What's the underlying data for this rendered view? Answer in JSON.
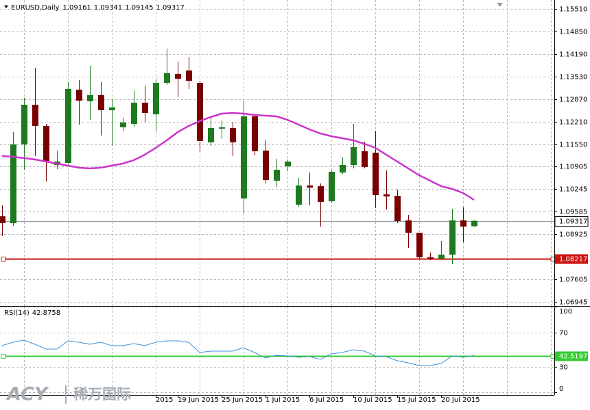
{
  "chart_data": {
    "type": "candlestick",
    "symbol": "EURUSD,Daily",
    "categories": [
      null,
      null,
      null,
      null,
      null,
      null,
      null,
      null,
      null,
      null,
      null,
      null,
      null,
      null,
      "2015",
      null,
      "19 Jun 2015",
      null,
      null,
      null,
      "25 Jun 2015",
      null,
      null,
      null,
      "1 Jul 2015",
      null,
      null,
      null,
      "6 Jul 2015",
      null,
      null,
      null,
      "10 Jul 2015",
      null,
      null,
      null,
      "15 Jul 2015",
      null,
      null,
      null,
      "20 Jul 2015",
      null,
      null,
      null
    ],
    "open": [
      1.0945,
      1.0925,
      1.1155,
      1.1271,
      1.1209,
      1.1095,
      1.1101,
      1.1315,
      1.1281,
      1.1299,
      1.1255,
      1.1205,
      1.1215,
      1.1277,
      1.1243,
      1.1335,
      1.1361,
      1.1371,
      1.1335,
      1.1161,
      1.1201,
      1.1203,
      1.0997,
      1.1237,
      1.1137,
      1.1049,
      1.1091,
      1.0979,
      1.1035,
      1.1033,
      1.0989,
      1.1073,
      1.1095,
      1.1135,
      1.1131,
      1.1009,
      1.1005,
      1.0933,
      1.0897,
      1.0825,
      1.0821,
      1.0833,
      1.0933,
      1.09161
    ],
    "high": [
      1.0977,
      1.1191,
      1.1291,
      1.1379,
      1.1215,
      1.1137,
      1.1337,
      1.1343,
      1.1385,
      1.1337,
      1.1287,
      1.1233,
      1.1313,
      1.1327,
      1.1345,
      1.1435,
      1.1397,
      1.1411,
      1.1341,
      1.1233,
      1.1225,
      1.1221,
      1.1281,
      1.1243,
      1.1167,
      1.1113,
      1.1111,
      1.1057,
      1.1073,
      1.1041,
      1.1081,
      1.1117,
      1.1215,
      1.1163,
      1.1195,
      1.1079,
      1.1023,
      1.0949,
      1.0897,
      1.0839,
      1.0873,
      1.0967,
      1.0971,
      1.09341
    ],
    "low": [
      1.0887,
      1.0917,
      1.1081,
      1.1121,
      1.1047,
      1.1083,
      1.1097,
      1.1213,
      1.1227,
      1.1181,
      1.1151,
      1.1195,
      1.1207,
      1.1221,
      1.1193,
      1.1329,
      1.1293,
      1.1317,
      1.1133,
      1.1151,
      1.1171,
      1.1121,
      1.0953,
      1.1123,
      1.1041,
      1.1031,
      1.1077,
      1.0973,
      1.0977,
      1.0915,
      1.0985,
      1.1069,
      1.1085,
      1.1085,
      1.0969,
      1.0965,
      1.0925,
      1.0853,
      1.0821,
      1.0817,
      1.0817,
      1.0805,
      1.0869,
      1.09145
    ],
    "close": [
      1.0925,
      1.1155,
      1.1271,
      1.1209,
      1.1107,
      1.1105,
      1.1317,
      1.1283,
      1.1299,
      1.1255,
      1.1263,
      1.1219,
      1.1277,
      1.1247,
      1.1335,
      1.1363,
      1.1347,
      1.1341,
      1.1165,
      1.1203,
      1.1205,
      1.1161,
      1.1237,
      1.1135,
      1.1051,
      1.1081,
      1.1105,
      1.1035,
      1.1029,
      1.0987,
      1.1075,
      1.1095,
      1.1147,
      1.1089,
      1.1007,
      1.1003,
      1.0931,
      1.0897,
      1.0825,
      1.0821,
      1.0833,
      1.0933,
      1.0915,
      1.09317
    ],
    "bull_color": "#1e7a1e",
    "bear_color": "#7a0000",
    "ma": {
      "color": "#cc33cc",
      "values": [
        1.1121,
        1.1119,
        1.1115,
        1.1111,
        1.1105,
        1.1099,
        1.1093,
        1.1087,
        1.1085,
        1.1087,
        1.1093,
        1.1099,
        1.1109,
        1.1125,
        1.1145,
        1.1167,
        1.1191,
        1.1209,
        1.1223,
        1.1235,
        1.1245,
        1.1247,
        1.1245,
        1.1241,
        1.1239,
        1.1237,
        1.1227,
        1.1213,
        1.1199,
        1.1187,
        1.1179,
        1.1173,
        1.1167,
        1.1157,
        1.1145,
        1.1125,
        1.1105,
        1.1085,
        1.1065,
        1.1049,
        1.1033,
        1.1025,
        1.1013,
        1.0993
      ]
    },
    "ylim": [
      1.0683,
      1.1577
    ],
    "yticks": [
      {
        "value": 1.1551,
        "label": "1.15510"
      },
      {
        "value": 1.1485,
        "label": "1.14850"
      },
      {
        "value": 1.1419,
        "label": "1.14190"
      },
      {
        "value": 1.1353,
        "label": "1.13530"
      },
      {
        "value": 1.1287,
        "label": "1.12870"
      },
      {
        "value": 1.1221,
        "label": "1.12210"
      },
      {
        "value": 1.1155,
        "label": "1.11550"
      },
      1.10905,
      1.10245,
      1.09585,
      1.08925,
      1.07605,
      1.06945
    ],
    "grid": true,
    "hline": {
      "value": 1.08217,
      "color": "#cc1111"
    },
    "rsi": {
      "title": "RSI(14)",
      "color": "#3d8fd6",
      "values": [
        54.4,
        58.4,
        60.8,
        56,
        50.4,
        50.4,
        60,
        58.4,
        56,
        58.4,
        54.4,
        54.4,
        56.8,
        54.4,
        58.4,
        60,
        60,
        58.4,
        46.4,
        48,
        48,
        48,
        52,
        46.4,
        40,
        43.2,
        42.4,
        40.8,
        41.6,
        38.4,
        44.8,
        46.4,
        49.6,
        48,
        42.4,
        41.6,
        36.8,
        34.4,
        31.2,
        31.2,
        33.6,
        42.4,
        40.8,
        42.8758
      ],
      "ylim": [
        0,
        100
      ],
      "yticks": [
        100,
        70,
        30,
        0
      ],
      "level": {
        "value": 42.5197,
        "color": "#33cc33"
      }
    },
    "watermark": {
      "brand": "ACY",
      "name": "稀万国际"
    }
  }
}
